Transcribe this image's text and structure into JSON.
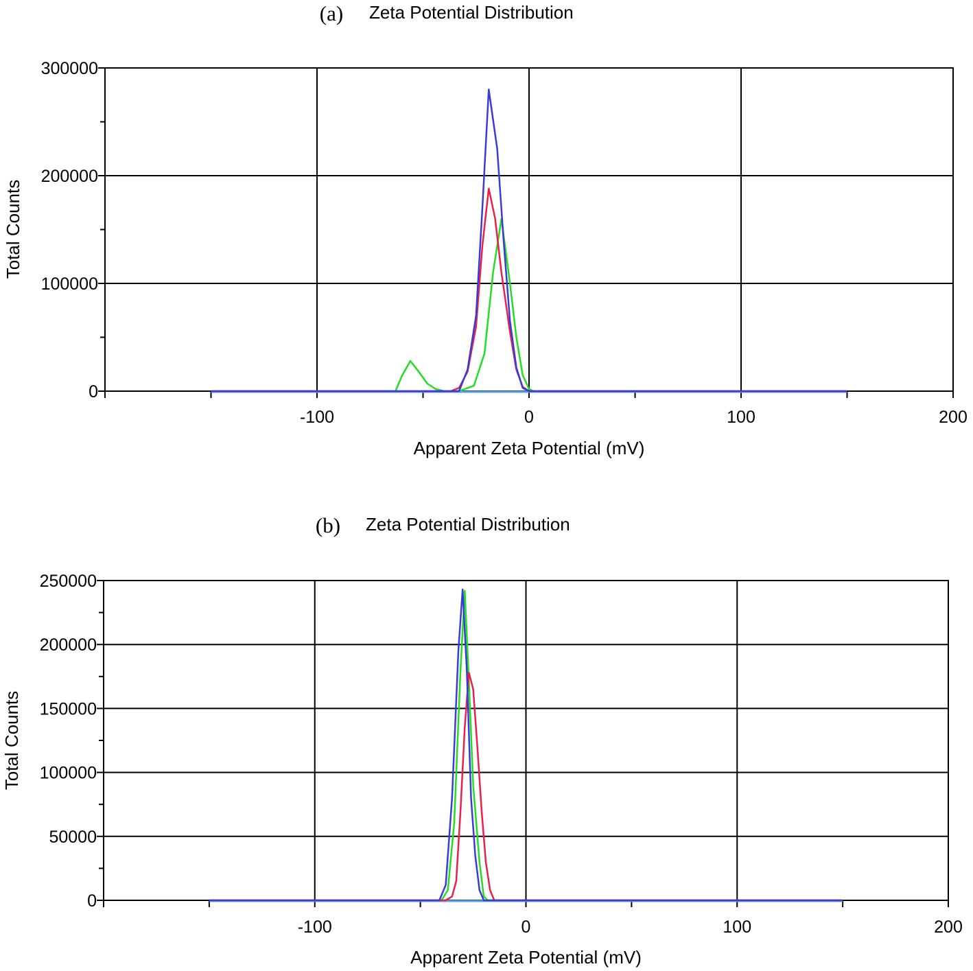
{
  "chart_data": [
    {
      "type": "line",
      "panel_label": "(a)",
      "title": "Zeta Potential Distribution",
      "xlabel": "Apparent Zeta Potential (mV)",
      "ylabel": "Total Counts",
      "xlim": [
        -200,
        200
      ],
      "ylim": [
        0,
        300000
      ],
      "x_ticks": [
        -100,
        0,
        100,
        200
      ],
      "x_tick_labels": [
        "-100",
        "0",
        "100",
        "200"
      ],
      "y_ticks": [
        0,
        100000,
        200000,
        300000
      ],
      "y_tick_labels": [
        "0",
        "100000",
        "200000",
        "300000"
      ],
      "grid": true,
      "series": [
        {
          "color": "#22dd22",
          "points": [
            [
              -150,
              0
            ],
            [
              -63,
              0
            ],
            [
              -60,
              14000
            ],
            [
              -56,
              28000
            ],
            [
              -52,
              18000
            ],
            [
              -48,
              7000
            ],
            [
              -44,
              2000
            ],
            [
              -40,
              0
            ],
            [
              -33,
              0
            ],
            [
              -26,
              5000
            ],
            [
              -21,
              35000
            ],
            [
              -17,
              110000
            ],
            [
              -13,
              160000
            ],
            [
              -9,
              100000
            ],
            [
              -6,
              50000
            ],
            [
              -3,
              15000
            ],
            [
              0,
              2000
            ],
            [
              2,
              0
            ],
            [
              150,
              0
            ]
          ]
        },
        {
          "color": "#e8204a",
          "points": [
            [
              -150,
              0
            ],
            [
              -37,
              0
            ],
            [
              -33,
              3000
            ],
            [
              -29,
              18000
            ],
            [
              -25,
              60000
            ],
            [
              -22,
              135000
            ],
            [
              -19,
              188000
            ],
            [
              -16,
              160000
            ],
            [
              -13,
              110000
            ],
            [
              -9,
              55000
            ],
            [
              -6,
              20000
            ],
            [
              -3,
              4000
            ],
            [
              0,
              0
            ],
            [
              150,
              0
            ]
          ]
        },
        {
          "color": "#3a3ad8",
          "points": [
            [
              -150,
              0
            ],
            [
              -33,
              0
            ],
            [
              -29,
              20000
            ],
            [
              -25,
              70000
            ],
            [
              -22,
              170000
            ],
            [
              -19,
              280000
            ],
            [
              -15,
              225000
            ],
            [
              -12,
              140000
            ],
            [
              -9,
              65000
            ],
            [
              -6,
              22000
            ],
            [
              -3,
              3000
            ],
            [
              0,
              0
            ],
            [
              150,
              0
            ]
          ]
        }
      ]
    },
    {
      "type": "line",
      "panel_label": "(b)",
      "title": "Zeta Potential Distribution",
      "xlabel": "Apparent Zeta Potential (mV)",
      "ylabel": "Total Counts",
      "xlim": [
        -200,
        200
      ],
      "ylim": [
        0,
        250000
      ],
      "x_ticks": [
        -100,
        0,
        100,
        200
      ],
      "x_tick_labels": [
        "-100",
        "0",
        "100",
        "200"
      ],
      "y_ticks": [
        0,
        50000,
        100000,
        150000,
        200000,
        250000
      ],
      "y_tick_labels": [
        "0",
        "50000",
        "100000",
        "150000",
        "200000",
        "250000"
      ],
      "grid": true,
      "series": [
        {
          "color": "#22dd22",
          "points": [
            [
              -150,
              0
            ],
            [
              -40,
              0
            ],
            [
              -37,
              8000
            ],
            [
              -34,
              60000
            ],
            [
              -31,
              180000
            ],
            [
              -29,
              242000
            ],
            [
              -27,
              170000
            ],
            [
              -25,
              90000
            ],
            [
              -22,
              30000
            ],
            [
              -20,
              3000
            ],
            [
              -18,
              0
            ],
            [
              150,
              0
            ]
          ]
        },
        {
          "color": "#e8204a",
          "points": [
            [
              -150,
              0
            ],
            [
              -38,
              0
            ],
            [
              -35,
              3000
            ],
            [
              -33,
              15000
            ],
            [
              -31,
              70000
            ],
            [
              -29,
              135000
            ],
            [
              -27,
              178000
            ],
            [
              -25,
              165000
            ],
            [
              -23,
              120000
            ],
            [
              -21,
              70000
            ],
            [
              -19,
              30000
            ],
            [
              -17,
              8000
            ],
            [
              -15,
              0
            ],
            [
              150,
              0
            ]
          ]
        },
        {
          "color": "#3a3ad8",
          "points": [
            [
              -150,
              0
            ],
            [
              -41,
              0
            ],
            [
              -38,
              12000
            ],
            [
              -35,
              80000
            ],
            [
              -32,
              195000
            ],
            [
              -30,
              243000
            ],
            [
              -28,
              180000
            ],
            [
              -26,
              80000
            ],
            [
              -24,
              35000
            ],
            [
              -22,
              8000
            ],
            [
              -20,
              0
            ],
            [
              150,
              0
            ]
          ]
        }
      ]
    }
  ]
}
